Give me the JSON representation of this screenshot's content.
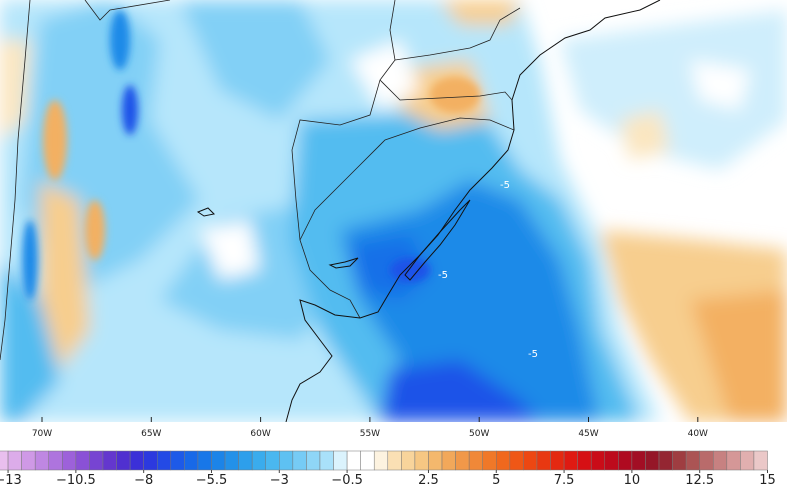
{
  "map": {
    "lon_labels": [
      "70W",
      "65W",
      "60W",
      "55W",
      "50W",
      "45W",
      "40W"
    ],
    "contour_labels": [
      "-5",
      "-5",
      "-5"
    ]
  },
  "colorbar": {
    "range": [
      -13.5,
      15
    ],
    "step": 0.5,
    "stops": [
      [
        -13.5,
        "#f0c8f0"
      ],
      [
        -12,
        "#c890e4"
      ],
      [
        -10.5,
        "#9458d8"
      ],
      [
        -9,
        "#5a30cc"
      ],
      [
        -8,
        "#3030dc"
      ],
      [
        -7,
        "#1f52e8"
      ],
      [
        -6,
        "#1670e8"
      ],
      [
        -5,
        "#1e8ae8"
      ],
      [
        -4,
        "#32a6ec"
      ],
      [
        -3,
        "#52bcf0"
      ],
      [
        -2,
        "#82d0f6"
      ],
      [
        -1,
        "#b6e6fb"
      ],
      [
        -0.5,
        "#ffffff"
      ],
      [
        0.5,
        "#ffffff"
      ],
      [
        1,
        "#fbe6c0"
      ],
      [
        2,
        "#f7ce8e"
      ],
      [
        3,
        "#f3b062"
      ],
      [
        4,
        "#f09040"
      ],
      [
        5,
        "#f07020"
      ],
      [
        6,
        "#ef4e12"
      ],
      [
        7,
        "#e63010"
      ],
      [
        8,
        "#dc1212"
      ],
      [
        9,
        "#c40a1a"
      ],
      [
        10,
        "#a80a22"
      ],
      [
        11,
        "#8e1a2a"
      ],
      [
        12,
        "#a44848"
      ],
      [
        13,
        "#c07676"
      ],
      [
        14,
        "#dca2a2"
      ],
      [
        15,
        "#f0d4d4"
      ]
    ],
    "ticks": [
      {
        "value": -13,
        "label": "−13"
      },
      {
        "value": -10.5,
        "label": "−10.5"
      },
      {
        "value": -8,
        "label": "−8"
      },
      {
        "value": -5.5,
        "label": "−5.5"
      },
      {
        "value": -3,
        "label": "−3"
      },
      {
        "value": -0.5,
        "label": "−0.5"
      },
      2.5,
      5,
      7.5,
      10,
      12.5,
      15
    ]
  }
}
